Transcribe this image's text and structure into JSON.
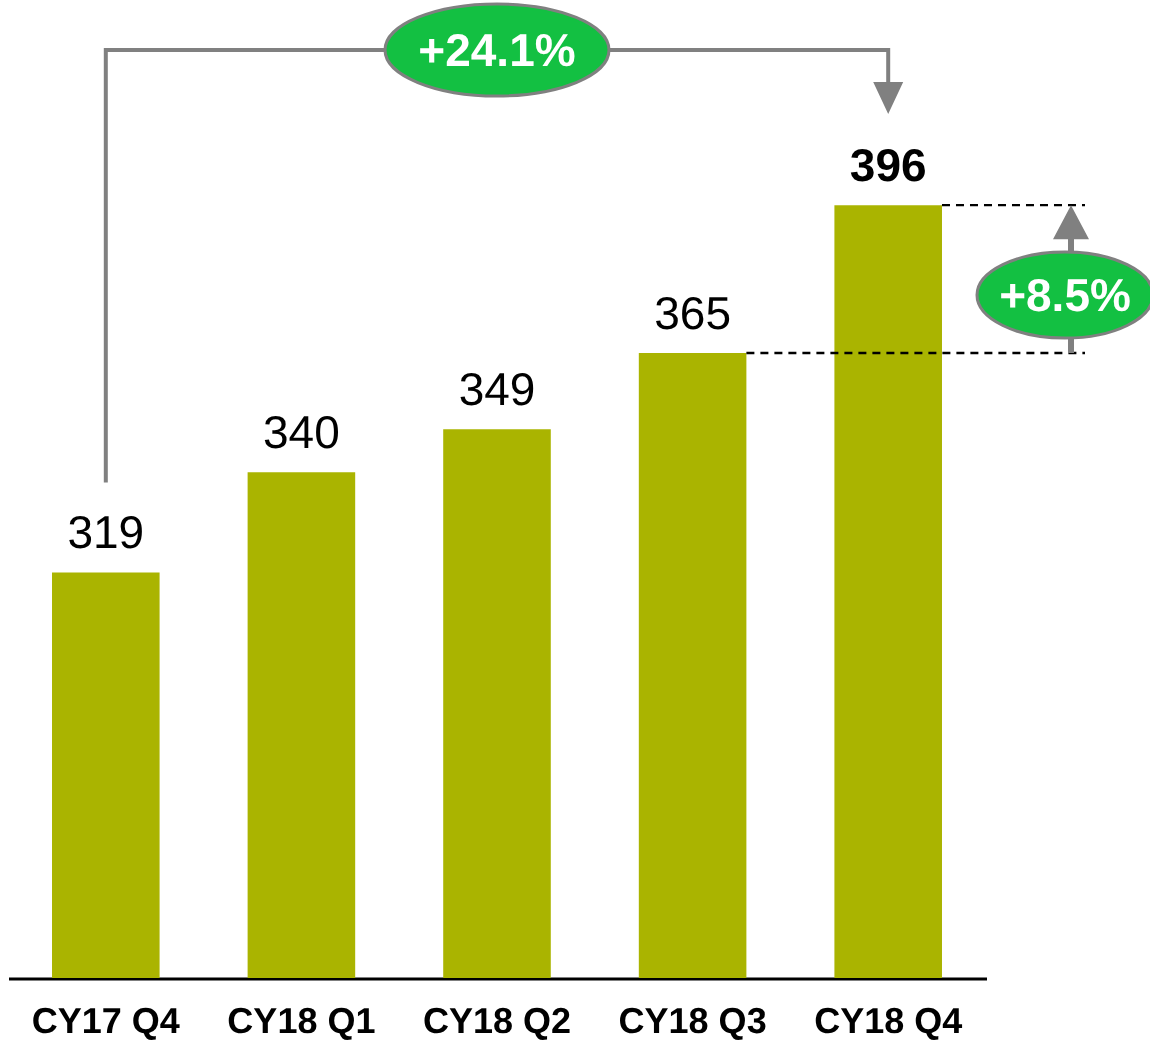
{
  "chart_data": {
    "type": "bar",
    "categories": [
      "CY17 Q4",
      "CY18 Q1",
      "CY18 Q2",
      "CY18 Q3",
      "CY18 Q4"
    ],
    "values": [
      319,
      340,
      349,
      365,
      396
    ],
    "color": "#aab400",
    "ylim": [
      234,
      439
    ],
    "tick_labels": "x",
    "data_labels": true,
    "annotations": [
      "+24.1%",
      "+8.5%"
    ]
  }
}
